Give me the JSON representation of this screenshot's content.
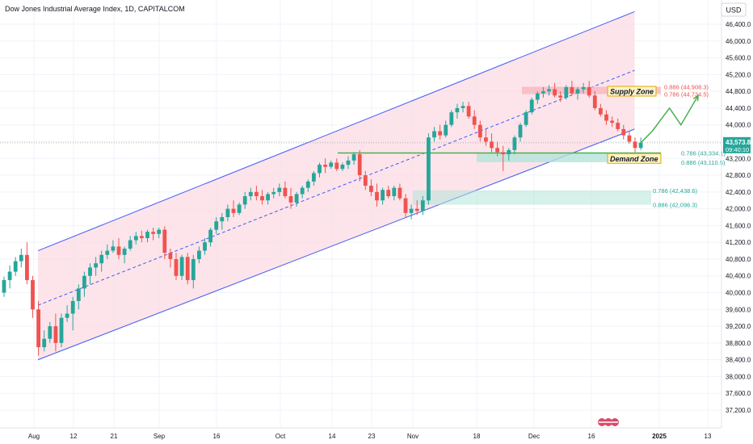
{
  "header": {
    "title": "Dow Jones Industrial Average Index, 1D, CAPITALCOM",
    "currency": "USD"
  },
  "price_badge": {
    "price": "43,573.8",
    "countdown": "09:40:10",
    "color": "#26a69a"
  },
  "colors": {
    "bull": "#26a69a",
    "bear": "#ef5350",
    "channel_line": "#3f5bf5",
    "channel_fill": "#fbdbe3",
    "supply_zone": "#f7b6be",
    "demand_zone": "#b4e3d9",
    "projection": "#4caf50",
    "zone_label_bg": "#fdf3c7",
    "zone_label_border": "#e0a800"
  },
  "chart_data": {
    "type": "candlestick",
    "title": "Dow Jones Industrial Average Index, 1D, CAPITALCOM",
    "ylabel": "USD",
    "ylim": [
      36800,
      46800
    ],
    "y_ticks": [
      "46,400.0",
      "46,000.0",
      "45,600.0",
      "45,200.0",
      "44,800.0",
      "44,400.0",
      "44,000.0",
      "43,600.0",
      "43,200.0",
      "42,800.0",
      "42,400.0",
      "42,000.0",
      "41,600.0",
      "41,200.0",
      "40,800.0",
      "40,400.0",
      "40,000.0",
      "39,600.0",
      "39,200.0",
      "38,800.0",
      "38,400.0",
      "38,000.0",
      "37,600.0",
      "37,200.0"
    ],
    "x_ticks": [
      "Aug",
      "12",
      "21",
      "Sep",
      "16",
      "Oct",
      "14",
      "23",
      "Nov",
      "18",
      "Dec",
      "16",
      "2025",
      "13"
    ],
    "candles": [
      [
        40000,
        40380,
        39900,
        40300
      ],
      [
        40300,
        40650,
        40100,
        40500
      ],
      [
        40500,
        40850,
        40400,
        40750
      ],
      [
        40750,
        41050,
        40600,
        40900
      ],
      [
        40900,
        41200,
        40200,
        40300
      ],
      [
        40300,
        40400,
        39400,
        39600
      ],
      [
        39600,
        39800,
        38500,
        38700
      ],
      [
        38700,
        39100,
        38600,
        38900
      ],
      [
        38900,
        39300,
        38800,
        39200
      ],
      [
        39200,
        39500,
        38600,
        38800
      ],
      [
        38800,
        39500,
        38700,
        39400
      ],
      [
        39400,
        39700,
        39300,
        39500
      ],
      [
        39500,
        39900,
        39100,
        39800
      ],
      [
        39800,
        40200,
        39600,
        40100
      ],
      [
        40100,
        40500,
        39900,
        40400
      ],
      [
        40400,
        40700,
        40200,
        40600
      ],
      [
        40600,
        40850,
        40400,
        40700
      ],
      [
        40700,
        41000,
        40500,
        40900
      ],
      [
        40900,
        41150,
        40800,
        41000
      ],
      [
        41000,
        41250,
        40950,
        41100
      ],
      [
        41100,
        41300,
        40800,
        40900
      ],
      [
        40900,
        41100,
        40700,
        41050
      ],
      [
        41050,
        41350,
        41000,
        41250
      ],
      [
        41250,
        41450,
        41150,
        41350
      ],
      [
        41350,
        41480,
        41200,
        41300
      ],
      [
        41300,
        41500,
        41200,
        41450
      ],
      [
        41450,
        41550,
        41250,
        41400
      ],
      [
        41400,
        41550,
        41300,
        41500
      ],
      [
        41500,
        41580,
        40800,
        40950
      ],
      [
        40950,
        41050,
        40600,
        40800
      ],
      [
        40800,
        40950,
        40300,
        40400
      ],
      [
        40400,
        40900,
        40300,
        40850
      ],
      [
        40850,
        40950,
        40200,
        40300
      ],
      [
        40300,
        40900,
        40100,
        40800
      ],
      [
        40800,
        41100,
        40700,
        41000
      ],
      [
        41000,
        41300,
        40900,
        41200
      ],
      [
        41200,
        41550,
        41100,
        41500
      ],
      [
        41500,
        41800,
        41400,
        41700
      ],
      [
        41700,
        41900,
        41500,
        41800
      ],
      [
        41800,
        42100,
        41700,
        42000
      ],
      [
        42000,
        42200,
        41800,
        41900
      ],
      [
        41900,
        42150,
        41850,
        42100
      ],
      [
        42100,
        42400,
        42000,
        42300
      ],
      [
        42300,
        42500,
        42200,
        42400
      ],
      [
        42400,
        42550,
        42200,
        42300
      ],
      [
        42300,
        42450,
        42100,
        42200
      ],
      [
        42200,
        42400,
        42100,
        42350
      ],
      [
        42350,
        42500,
        42250,
        42400
      ],
      [
        42400,
        42600,
        42300,
        42500
      ],
      [
        42500,
        42650,
        42250,
        42300
      ],
      [
        42300,
        42500,
        42000,
        42150
      ],
      [
        42150,
        42400,
        42050,
        42350
      ],
      [
        42350,
        42550,
        42250,
        42500
      ],
      [
        42500,
        42700,
        42400,
        42650
      ],
      [
        42650,
        42900,
        42550,
        42850
      ],
      [
        42850,
        43100,
        42750,
        43050
      ],
      [
        43050,
        43200,
        42850,
        43000
      ],
      [
        43000,
        43150,
        42950,
        43100
      ],
      [
        43100,
        43200,
        42900,
        42950
      ],
      [
        42950,
        43100,
        42900,
        43050
      ],
      [
        43050,
        43250,
        42950,
        43150
      ],
      [
        43150,
        43350,
        43050,
        43300
      ],
      [
        43300,
        43400,
        42650,
        42800
      ],
      [
        42800,
        42900,
        42450,
        42550
      ],
      [
        42550,
        42700,
        42300,
        42400
      ],
      [
        42400,
        42600,
        42050,
        42200
      ],
      [
        42200,
        42500,
        42100,
        42450
      ],
      [
        42450,
        42550,
        42250,
        42300
      ],
      [
        42300,
        42550,
        42200,
        42500
      ],
      [
        42500,
        42600,
        42200,
        42250
      ],
      [
        42250,
        42350,
        41800,
        41900
      ],
      [
        41900,
        42100,
        41750,
        42000
      ],
      [
        42000,
        42200,
        41850,
        41950
      ],
      [
        41950,
        42300,
        41850,
        42200
      ],
      [
        42200,
        43800,
        42100,
        43700
      ],
      [
        43700,
        43950,
        43600,
        43850
      ],
      [
        43850,
        44000,
        43650,
        43750
      ],
      [
        43750,
        44100,
        43700,
        44000
      ],
      [
        44000,
        44350,
        43950,
        44300
      ],
      [
        44300,
        44500,
        44150,
        44400
      ],
      [
        44400,
        44550,
        44300,
        44450
      ],
      [
        44450,
        44550,
        44150,
        44200
      ],
      [
        44200,
        44350,
        43900,
        44000
      ],
      [
        44000,
        44100,
        43600,
        43700
      ],
      [
        43700,
        43900,
        43500,
        43600
      ],
      [
        43600,
        43800,
        43350,
        43450
      ],
      [
        43450,
        43600,
        43250,
        43350
      ],
      [
        43350,
        43500,
        42900,
        43300
      ],
      [
        43300,
        43450,
        43150,
        43400
      ],
      [
        43400,
        43750,
        43300,
        43700
      ],
      [
        43700,
        44050,
        43600,
        44000
      ],
      [
        44000,
        44350,
        43950,
        44300
      ],
      [
        44300,
        44650,
        44250,
        44600
      ],
      [
        44600,
        44800,
        44500,
        44750
      ],
      [
        44750,
        44900,
        44650,
        44800
      ],
      [
        44800,
        44950,
        44700,
        44850
      ],
      [
        44850,
        45000,
        44650,
        44700
      ],
      [
        44700,
        44800,
        44550,
        44650
      ],
      [
        44650,
        44950,
        44600,
        44900
      ],
      [
        44900,
        45050,
        44700,
        44750
      ],
      [
        44750,
        44900,
        44600,
        44850
      ],
      [
        44850,
        45000,
        44750,
        44900
      ],
      [
        44900,
        45050,
        44650,
        44700
      ],
      [
        44700,
        44800,
        44350,
        44400
      ],
      [
        44400,
        44500,
        44200,
        44250
      ],
      [
        44250,
        44350,
        44000,
        44100
      ],
      [
        44100,
        44200,
        43950,
        44050
      ],
      [
        44050,
        44150,
        43850,
        43900
      ],
      [
        43900,
        44000,
        43650,
        43750
      ],
      [
        43750,
        43850,
        43550,
        43600
      ],
      [
        43600,
        43700,
        43350,
        43450
      ],
      [
        43450,
        43700,
        43400,
        43573.8
      ]
    ],
    "trend_channel": {
      "upper": [
        [
          0,
          41000
        ],
        [
          104,
          46700
        ]
      ],
      "lower": [
        [
          0,
          38400
        ],
        [
          104,
          43900
        ]
      ],
      "midline": [
        [
          0,
          39700
        ],
        [
          104,
          45300
        ]
      ]
    },
    "supply_zone": {
      "label": "Supply Zone",
      "top": 44908.3,
      "bottom": 44734.5
    },
    "demand_zone": {
      "label": "Demand Zone",
      "top": 43334.1,
      "bottom": 43110.5
    },
    "lower_zone": {
      "top": 42438.6,
      "bottom": 42096.3
    },
    "fib_levels": [
      {
        "label": "0.886 (44,908.3)",
        "value": 44908.3,
        "color": "#ef5350"
      },
      {
        "label": "0.786 (44,734.5)",
        "value": 44734.5,
        "color": "#ef5350"
      },
      {
        "label": "0.786 (43,334.1)",
        "value": 43334.1,
        "color": "#26a69a"
      },
      {
        "label": "0.886 (43,110.5)",
        "value": 43110.5,
        "color": "#26a69a"
      },
      {
        "label": "0.786 (42,438.6)",
        "value": 42438.6,
        "color": "#26a69a"
      },
      {
        "label": "0.886 (42,096.3)",
        "value": 42096.3,
        "color": "#26a69a"
      }
    ],
    "support_line": 43330,
    "projection": [
      [
        111,
        43573.8
      ],
      [
        113,
        43850
      ],
      [
        116,
        44400
      ],
      [
        118,
        44000
      ],
      [
        121,
        44700
      ]
    ],
    "current_price": 43573.8,
    "grid": true,
    "legend": "none"
  }
}
